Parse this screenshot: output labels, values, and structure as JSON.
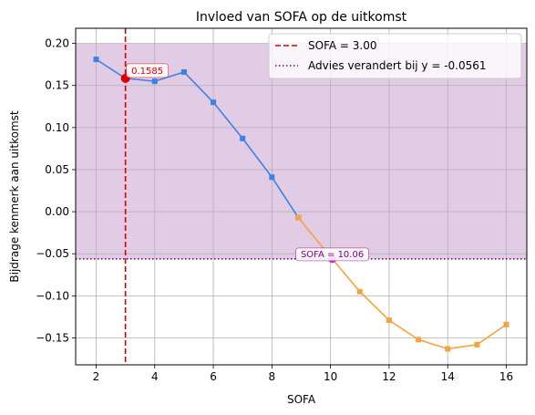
{
  "chart_data": {
    "type": "line",
    "title": "Invloed van SOFA op de uitkomst",
    "xlabel": "SOFA",
    "ylabel": "Bijdrage kenmerk aan uitkomst",
    "xlim": [
      1.3,
      16.7
    ],
    "ylim": [
      -0.182,
      0.218
    ],
    "x_ticks": [
      2,
      4,
      6,
      8,
      10,
      12,
      14,
      16
    ],
    "y_ticks": [
      0.2,
      0.15,
      0.1,
      0.05,
      0.0,
      -0.05,
      -0.1,
      -0.15
    ],
    "y_tick_labels": [
      "0.20",
      "0.15",
      "0.10",
      "0.05",
      "0.00",
      "−0.05",
      "−0.10",
      "−0.15"
    ],
    "grid": true,
    "legend_position": "top-right",
    "series": [
      {
        "color": "#3b82e6",
        "x": [
          2,
          3,
          4,
          5,
          6,
          7,
          8,
          8.9
        ],
        "y": [
          0.181,
          0.1585,
          0.155,
          0.166,
          0.13,
          0.087,
          0.041,
          -0.007
        ]
      },
      {
        "color": "#f4a340",
        "x": [
          8.9,
          10.06,
          11,
          12,
          13,
          14,
          15,
          16
        ],
        "y": [
          -0.007,
          -0.0561,
          -0.095,
          -0.129,
          -0.152,
          -0.163,
          -0.158,
          -0.134
        ]
      }
    ],
    "shaded_region": {
      "y_from": -0.0561,
      "y_to": 0.2,
      "color": "#c9a0cf"
    },
    "reference_lines": [
      {
        "orientation": "vertical",
        "value": 3.0,
        "color": "#dd0000",
        "style": "dashed",
        "legend": "SOFA = 3.00"
      },
      {
        "orientation": "horizontal",
        "value": -0.0561,
        "color": "#800080",
        "style": "dotted",
        "legend": "Advies verandert bij y = -0.0561"
      }
    ],
    "annotations": [
      {
        "text": "0.1585",
        "x": 3.0,
        "y": 0.1585,
        "color": "#dd0000",
        "marker_color": "#dd0000"
      },
      {
        "text": "SOFA = 10.06",
        "x": 10.06,
        "y": -0.0561,
        "color": "#800080",
        "marker_color": "#cc33cc"
      }
    ]
  }
}
